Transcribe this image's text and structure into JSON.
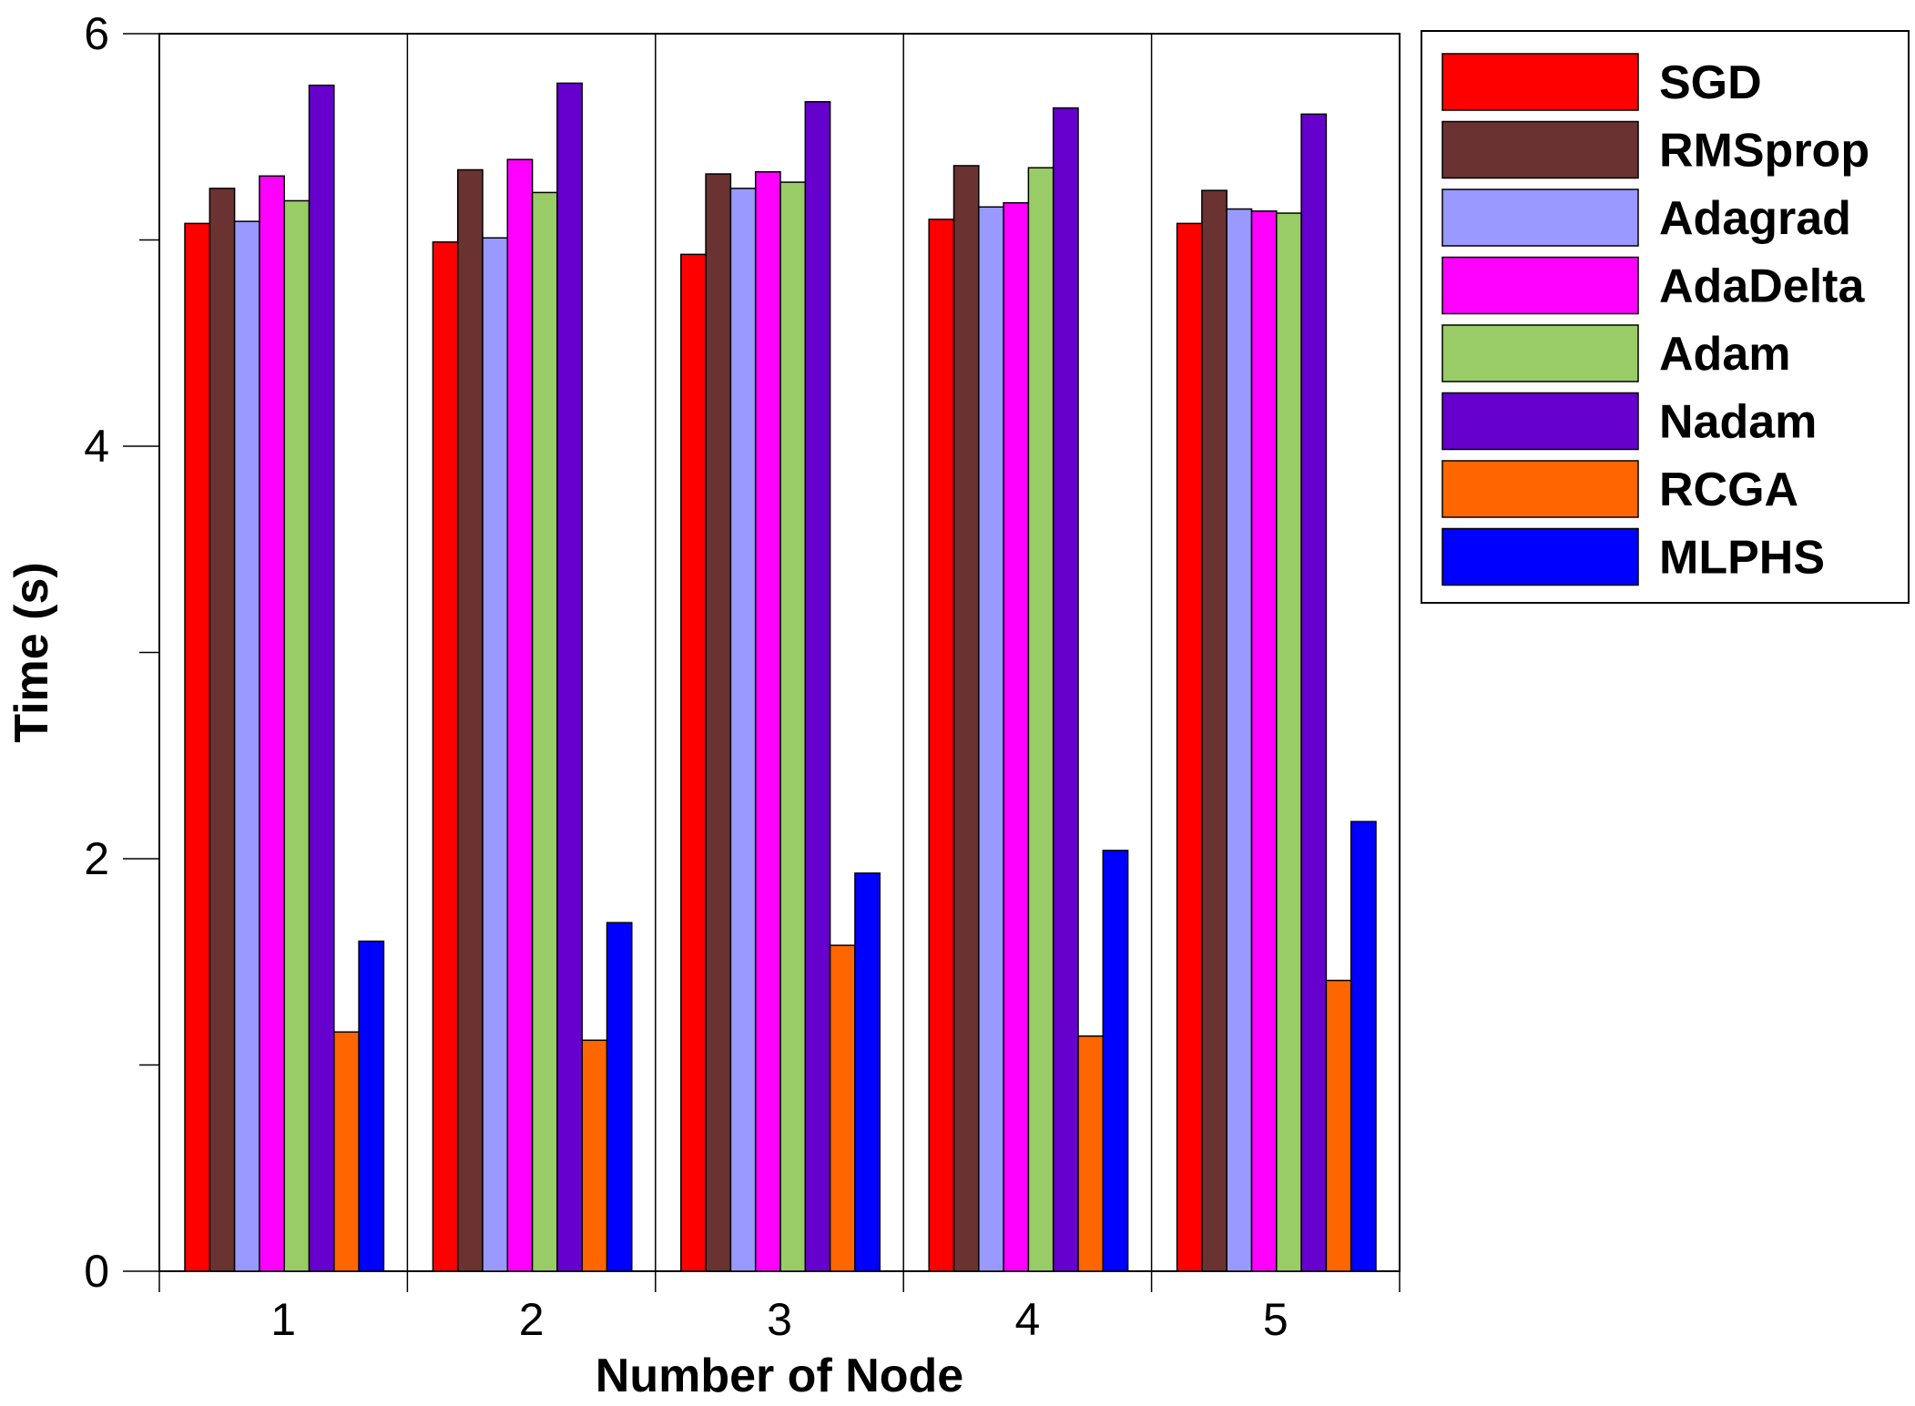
{
  "chart_data": {
    "type": "bar",
    "title": "",
    "xlabel": "Number of Node",
    "ylabel": "Time (s)",
    "categories": [
      "1",
      "2",
      "3",
      "4",
      "5"
    ],
    "ylim": [
      0,
      6
    ],
    "yticks": [
      0,
      2,
      4,
      6
    ],
    "grid": "vertical separators between categories",
    "legend_position": "top-right, outside plot",
    "series": [
      {
        "name": "SGD",
        "color": "#ff0000",
        "values": [
          5.08,
          4.99,
          4.93,
          5.1,
          5.08
        ]
      },
      {
        "name": "RMSprop",
        "color": "#6b3232",
        "values": [
          5.25,
          5.34,
          5.32,
          5.36,
          5.24
        ]
      },
      {
        "name": "Adagrad",
        "color": "#9999ff",
        "values": [
          5.09,
          5.01,
          5.25,
          5.16,
          5.15
        ]
      },
      {
        "name": "AdaDelta",
        "color": "#ff00ff",
        "values": [
          5.31,
          5.39,
          5.33,
          5.18,
          5.14
        ]
      },
      {
        "name": "Adam",
        "color": "#99cc66",
        "values": [
          5.19,
          5.23,
          5.28,
          5.35,
          5.13
        ]
      },
      {
        "name": "Nadam",
        "color": "#6600cc",
        "values": [
          5.75,
          5.76,
          5.67,
          5.64,
          5.61
        ]
      },
      {
        "name": "RCGA",
        "color": "#ff6600",
        "values": [
          1.16,
          1.12,
          1.58,
          1.14,
          1.41
        ]
      },
      {
        "name": "MLPHS",
        "color": "#0000ff",
        "values": [
          1.6,
          1.69,
          1.93,
          2.04,
          2.18
        ]
      }
    ]
  }
}
